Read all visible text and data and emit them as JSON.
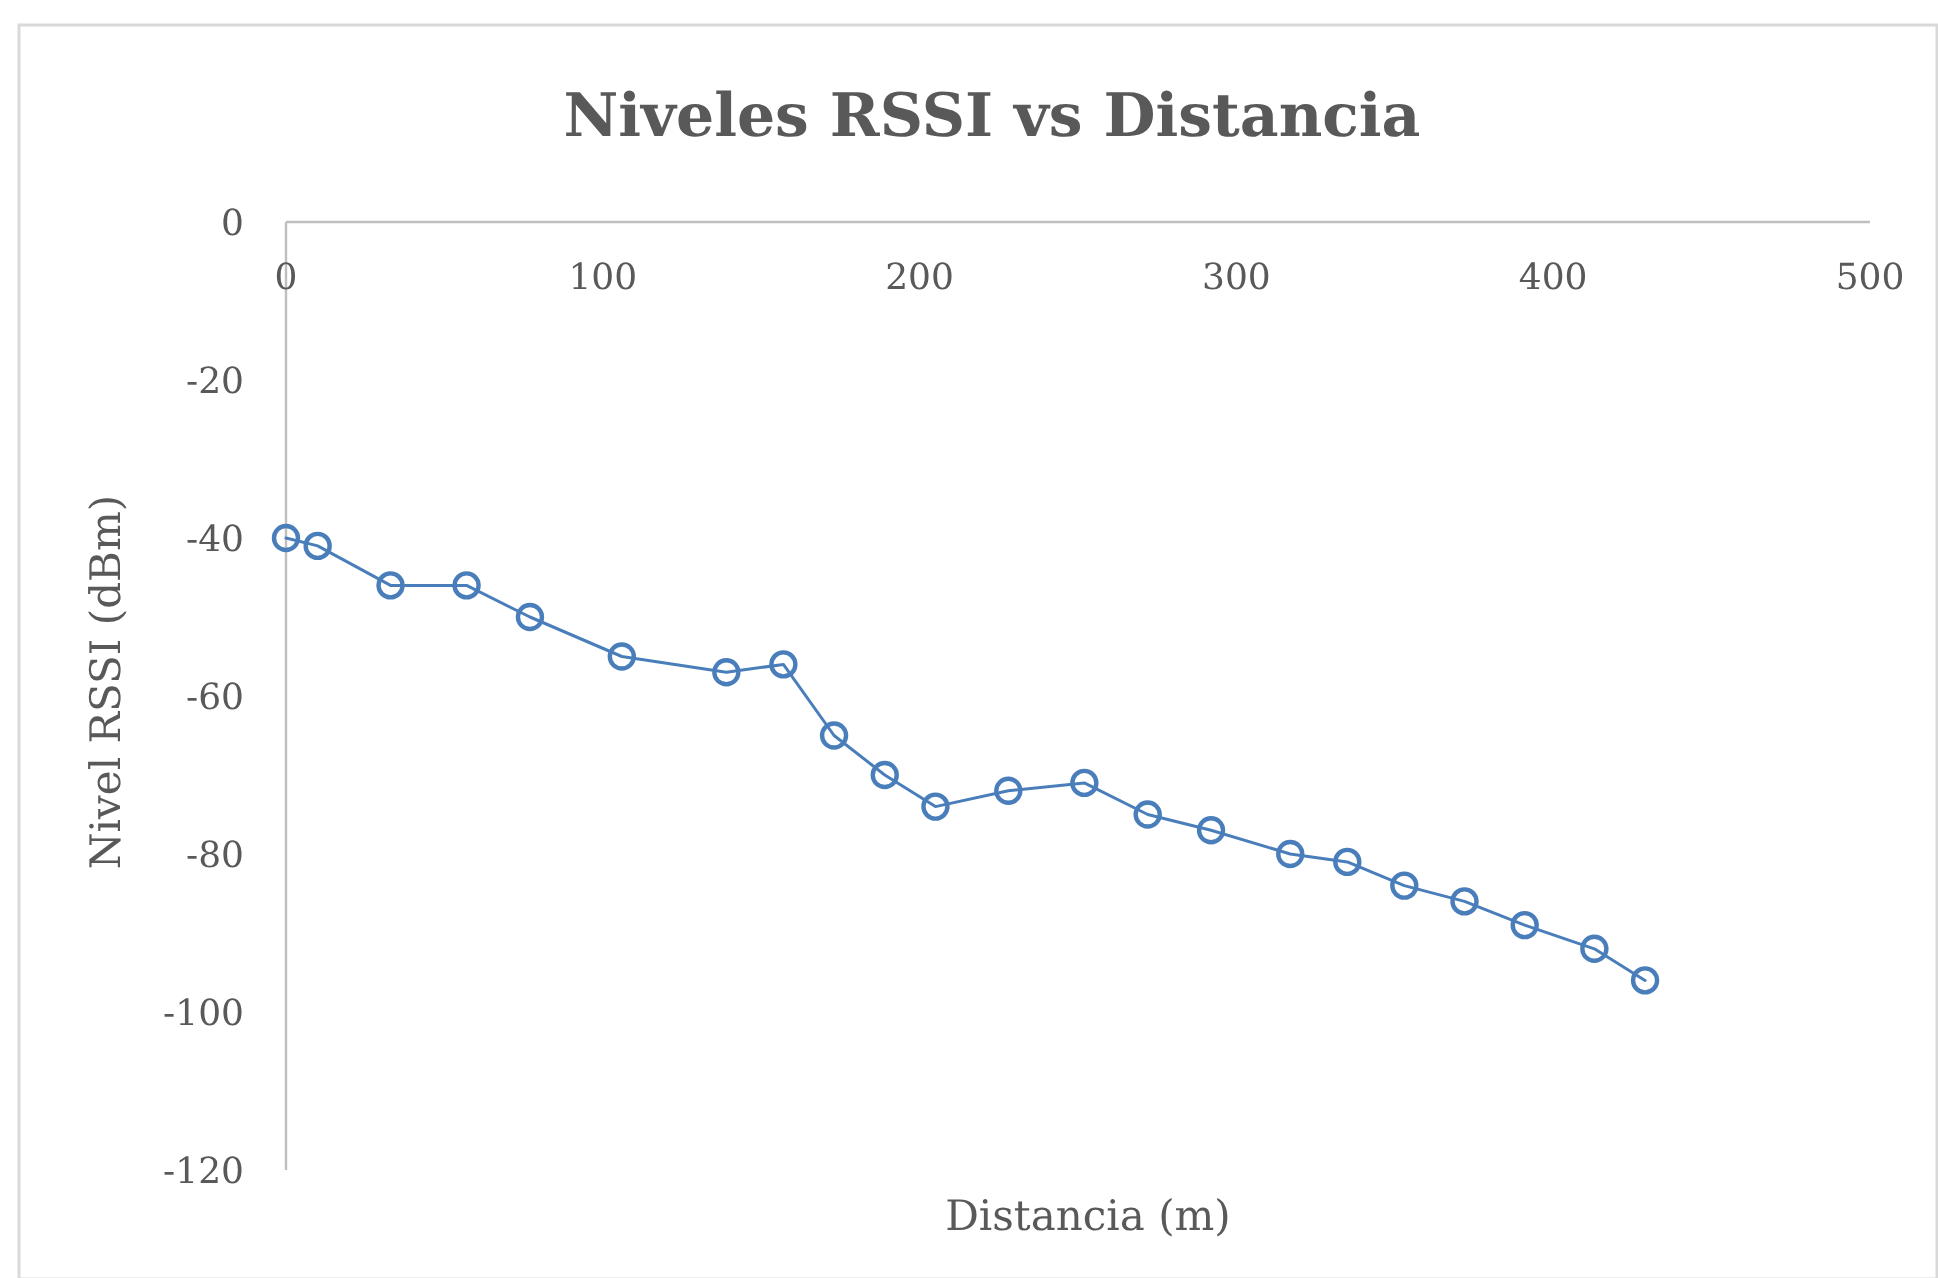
{
  "chart_data": {
    "type": "line",
    "title": "Niveles RSSI vs Distancia",
    "xlabel": "Distancia (m)",
    "ylabel": "Nivel RSSI (dBm)",
    "x": [
      0,
      10,
      33,
      57,
      77,
      106,
      139,
      157,
      173,
      189,
      205,
      228,
      252,
      272,
      292,
      317,
      335,
      353,
      372,
      391,
      413,
      429
    ],
    "series": [
      {
        "color": "#4a7ebb",
        "values": [
          -40,
          -41,
          -46,
          -46,
          -50,
          -55,
          -57,
          -56,
          -65,
          -70,
          -74,
          -72,
          -71,
          -75,
          -77,
          -80,
          -81,
          -84,
          -86,
          -89,
          -92,
          -96
        ]
      }
    ],
    "xlim": [
      0,
      500
    ],
    "xticks": [
      0,
      100,
      200,
      300,
      400,
      500
    ],
    "ylim": [
      -120,
      0
    ],
    "yticks": [
      -120,
      -100,
      -80,
      -60,
      -40,
      -20,
      0
    ],
    "marker": "circle",
    "line_style": "solid"
  }
}
